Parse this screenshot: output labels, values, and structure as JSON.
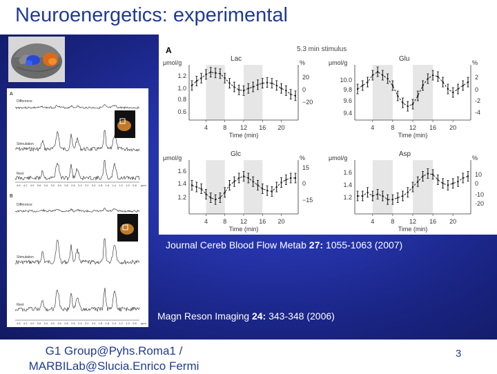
{
  "slide": {
    "title": "Neuroenergetics: experimental",
    "page_number": "3",
    "footer_line1": "G1 Group@Pyhs.Roma1 /",
    "footer_line2": "MARBILab@Slucia.Enrico Fermi"
  },
  "captions": {
    "figure_ref": {
      "journal": "Journal Cereb Blood Flow Metab",
      "volume": "27:",
      "pages": "1055-1063 (2007)"
    },
    "spectra_ref": {
      "journal": "Magn Reson Imaging",
      "volume": "24:",
      "pages": "343-348 (2006)"
    }
  },
  "spectra_panel": {
    "panel_a_label": "A",
    "panel_b_label": "B",
    "difference_label": "Difference",
    "stimulation_label": "Stimulation",
    "rest_label": "Rest",
    "ppm_label": "ppm",
    "ppm_ticks": [
      "4.6",
      "4.2",
      "4.0",
      "3.6",
      "3.4",
      "3.2",
      "3.0",
      "2.8",
      "2.6",
      "2.4",
      "2.2",
      "2.0",
      "1.8",
      "1.6",
      "1.4",
      "1.2",
      "1.0",
      "0.8"
    ]
  },
  "figure": {
    "panel_label": "A",
    "stimulus_label": "5.3 min stimulus",
    "x_label": "Time (min)",
    "x_ticks": [
      "4",
      "8",
      "12",
      "16",
      "20"
    ],
    "left_unit": "μmol/g",
    "right_unit": "%"
  },
  "chart_data": [
    {
      "type": "line",
      "title": "Lac",
      "x": [
        1,
        2,
        3,
        4,
        5,
        6,
        7,
        8,
        9,
        10,
        11,
        12,
        13,
        14,
        15,
        16,
        17,
        18,
        19,
        20,
        21,
        22,
        23
      ],
      "series": [
        {
          "values": [
            1.02,
            1.08,
            1.12,
            1.17,
            1.2,
            1.19,
            1.18,
            1.12,
            1.05,
            1.0,
            0.96,
            0.95,
            0.98,
            1.0,
            1.03,
            1.05,
            1.06,
            1.05,
            1.02,
            0.98,
            0.95,
            0.9,
            0.88
          ]
        }
      ],
      "y_left_ticks": [
        "1.2",
        "1.0",
        "0.8",
        "0.6"
      ],
      "y_right_ticks": [
        "20",
        "0",
        "−20"
      ],
      "shaded_intervals": [
        [
          4,
          8
        ],
        [
          12,
          16
        ]
      ]
    },
    {
      "type": "line",
      "title": "Glu",
      "x": [
        1,
        2,
        3,
        4,
        5,
        6,
        7,
        8,
        9,
        10,
        11,
        12,
        13,
        14,
        15,
        16,
        17,
        18,
        19,
        20,
        21,
        22,
        23
      ],
      "series": [
        {
          "values": [
            9.8,
            9.85,
            9.9,
            10.0,
            10.05,
            10.0,
            9.95,
            9.85,
            9.7,
            9.6,
            9.55,
            9.58,
            9.7,
            9.85,
            9.95,
            10.0,
            9.98,
            9.9,
            9.8,
            9.75,
            9.8,
            9.85,
            9.9
          ]
        }
      ],
      "y_left_ticks": [
        "10.0",
        "9.8",
        "9.6",
        "9.4"
      ],
      "y_right_ticks": [
        "2",
        "0",
        "-2",
        "-4"
      ],
      "shaded_intervals": [
        [
          4,
          8
        ],
        [
          12,
          16
        ]
      ]
    },
    {
      "type": "line",
      "title": "Glc",
      "x": [
        1,
        2,
        3,
        4,
        5,
        6,
        7,
        8,
        9,
        10,
        11,
        12,
        13,
        14,
        15,
        16,
        17,
        18,
        19,
        20,
        21,
        22,
        23
      ],
      "series": [
        {
          "values": [
            1.42,
            1.4,
            1.38,
            1.32,
            1.28,
            1.26,
            1.28,
            1.34,
            1.42,
            1.46,
            1.5,
            1.52,
            1.5,
            1.46,
            1.42,
            1.38,
            1.36,
            1.35,
            1.4,
            1.45,
            1.48,
            1.5,
            1.5
          ]
        }
      ],
      "y_left_ticks": [
        "1.6",
        "1.4",
        "1.2"
      ],
      "y_right_ticks": [
        "15",
        "0",
        "−15"
      ],
      "shaded_intervals": [
        [
          4,
          8
        ],
        [
          12,
          16
        ]
      ]
    },
    {
      "type": "line",
      "title": "Asp",
      "x": [
        1,
        2,
        3,
        4,
        5,
        6,
        7,
        8,
        9,
        10,
        11,
        12,
        13,
        14,
        15,
        16,
        17,
        18,
        19,
        20,
        21,
        22,
        23
      ],
      "series": [
        {
          "values": [
            1.3,
            1.3,
            1.34,
            1.3,
            1.32,
            1.3,
            1.26,
            1.26,
            1.28,
            1.3,
            1.34,
            1.4,
            1.46,
            1.52,
            1.55,
            1.54,
            1.48,
            1.44,
            1.42,
            1.44,
            1.46,
            1.5,
            1.52
          ]
        }
      ],
      "y_left_ticks": [
        "1.6",
        "1.4",
        "1.2"
      ],
      "y_right_ticks": [
        "10",
        "0",
        "-10",
        "-20"
      ],
      "shaded_intervals": [
        [
          4,
          8
        ],
        [
          12,
          16
        ]
      ]
    }
  ]
}
